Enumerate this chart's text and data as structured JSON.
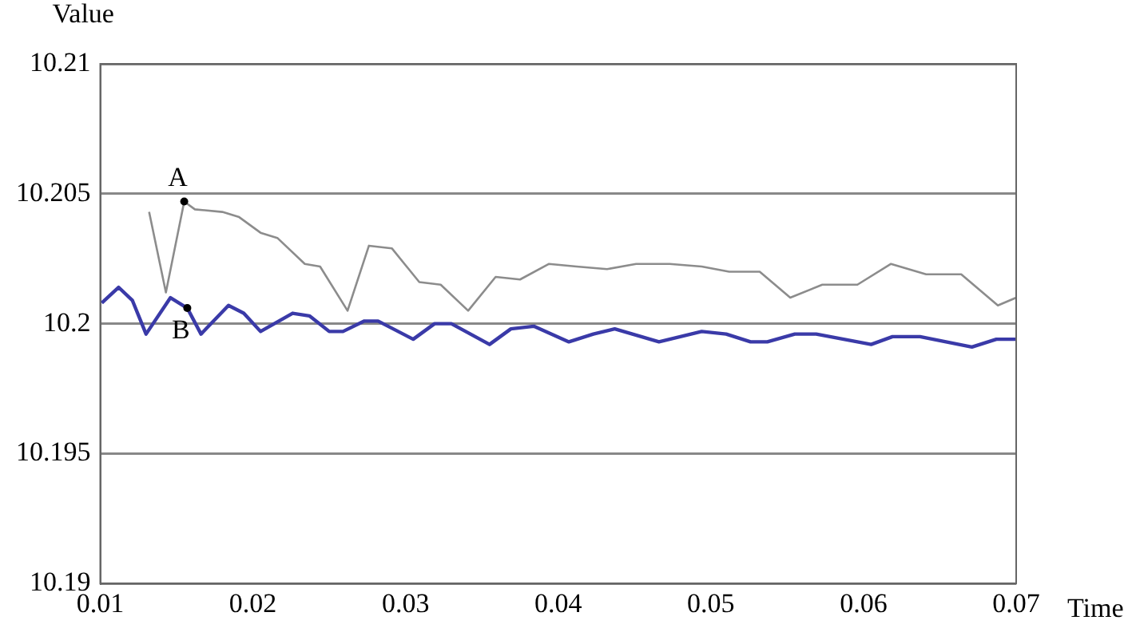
{
  "chart_data": {
    "type": "line",
    "xlabel": "Time",
    "ylabel": "Value",
    "xlim": [
      0.01,
      0.07
    ],
    "xticks": [
      0.01,
      0.02,
      0.03,
      0.04,
      0.05,
      0.06,
      0.07
    ],
    "ylim": [
      10.19,
      10.21
    ],
    "yticks": [
      10.19,
      10.195,
      10.2,
      10.205,
      10.21
    ],
    "grid": "y",
    "legend": false,
    "series": [
      {
        "color": "#8c8c8c",
        "x": [
          0.0132,
          0.0143,
          0.0155,
          0.0162,
          0.018,
          0.0191,
          0.0205,
          0.0216,
          0.0234,
          0.0244,
          0.0262,
          0.0276,
          0.0291,
          0.0309,
          0.0323,
          0.0341,
          0.0359,
          0.0375,
          0.0394,
          0.0412,
          0.0432,
          0.0451,
          0.0473,
          0.0494,
          0.0512,
          0.0532,
          0.0552,
          0.0573,
          0.0596,
          0.0618,
          0.0641,
          0.0664,
          0.0688,
          0.07
        ],
        "values": [
          10.2043,
          10.2012,
          10.2047,
          10.2044,
          10.2043,
          10.2041,
          10.2035,
          10.2033,
          10.2023,
          10.2022,
          10.2005,
          10.203,
          10.2029,
          10.2016,
          10.2015,
          10.2005,
          10.2018,
          10.2017,
          10.2023,
          10.2022,
          10.2021,
          10.2023,
          10.2023,
          10.2022,
          10.202,
          10.202,
          10.201,
          10.2015,
          10.2015,
          10.2023,
          10.2019,
          10.2019,
          10.2007,
          10.201
        ]
      },
      {
        "color": "#3a3aa8",
        "x": [
          0.0101,
          0.0112,
          0.0121,
          0.013,
          0.0146,
          0.0157,
          0.0166,
          0.0184,
          0.0194,
          0.0205,
          0.0226,
          0.0237,
          0.025,
          0.0259,
          0.0273,
          0.0282,
          0.0305,
          0.0319,
          0.033,
          0.0355,
          0.0369,
          0.0384,
          0.0407,
          0.0423,
          0.0437,
          0.0466,
          0.0494,
          0.051,
          0.0526,
          0.0537,
          0.0555,
          0.0569,
          0.0605,
          0.0619,
          0.0637,
          0.0671,
          0.0687,
          0.07
        ],
        "values": [
          10.2008,
          10.2014,
          10.2009,
          10.1996,
          10.201,
          10.2006,
          10.1996,
          10.2007,
          10.2004,
          10.1997,
          10.2004,
          10.2003,
          10.1997,
          10.1997,
          10.2001,
          10.2001,
          10.1994,
          10.2,
          10.2,
          10.1992,
          10.1998,
          10.1999,
          10.1993,
          10.1996,
          10.1998,
          10.1993,
          10.1997,
          10.1996,
          10.1993,
          10.1993,
          10.1996,
          10.1996,
          10.1992,
          10.1995,
          10.1995,
          10.1991,
          10.1994,
          10.1994
        ]
      }
    ],
    "annotations": [
      {
        "text": "A",
        "x": 0.0155,
        "y": 10.2047
      },
      {
        "text": "B",
        "x": 0.0157,
        "y": 10.2006
      }
    ]
  }
}
